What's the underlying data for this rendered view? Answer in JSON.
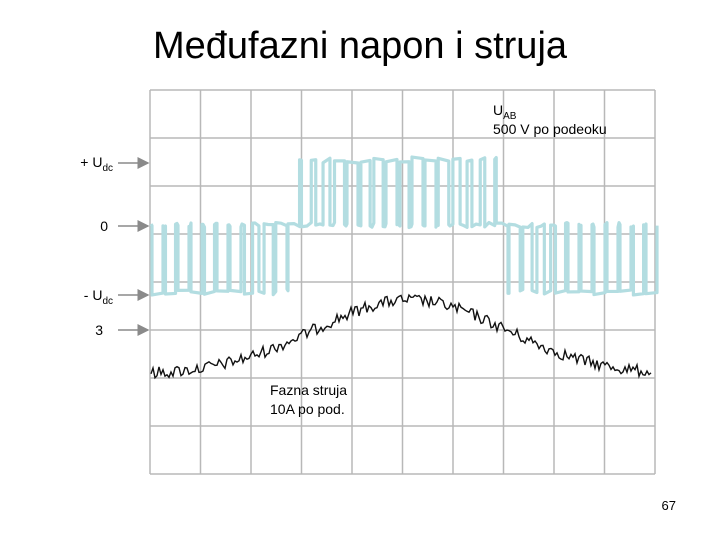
{
  "title": "Međufazni napon i struja",
  "voltage_label": {
    "symbol": "U",
    "subscript": "AB",
    "scale": "500 V po podeoku"
  },
  "markers": [
    {
      "text": "+ U",
      "subscript": "dc"
    },
    {
      "text": "0"
    },
    {
      "text": "- U",
      "subscript": "dc"
    },
    {
      "text": "3"
    }
  ],
  "current_label": {
    "lines": [
      "Fazna struja",
      "10A po pod."
    ]
  },
  "page_number": "67"
}
